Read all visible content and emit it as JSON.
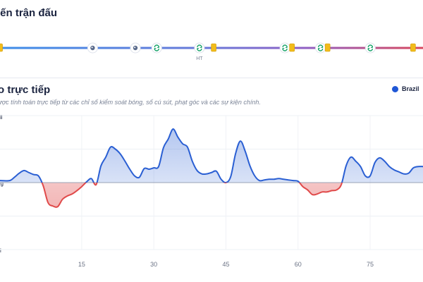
{
  "timeline": {
    "title": "iến trận đấu",
    "halftime_label": "HT",
    "events": [
      {
        "type": "card",
        "minute": 1
      },
      {
        "type": "ball",
        "minute": 14
      },
      {
        "type": "ball",
        "minute": 20
      },
      {
        "type": "substitution",
        "minute": 23
      },
      {
        "type": "substitution",
        "minute": 29
      },
      {
        "type": "card",
        "minute": 31
      },
      {
        "type": "substitution",
        "minute": 41
      },
      {
        "type": "card",
        "minute": 42
      },
      {
        "type": "substitution",
        "minute": 46
      },
      {
        "type": "card",
        "minute": 47
      },
      {
        "type": "substitution",
        "minute": 53
      },
      {
        "type": "card",
        "minute": 59
      }
    ],
    "colors": {
      "home": "#3d8de8",
      "middle": "#8f5fc4",
      "away": "#d8475c"
    }
  },
  "momentum": {
    "title": "o trực tiếp",
    "subtitle": "ược tính toán trực tiếp từ các chỉ số kiểm soát bóng, số cú sút, phạt góc và các sự kiện chính.",
    "legend": {
      "label": "Brazil",
      "color": "#1f57d6"
    },
    "y_labels": {
      "top": "zil",
      "middle": "ng",
      "bottom": "iti"
    }
  },
  "chart_data": {
    "type": "area",
    "title": "",
    "xlabel": "",
    "ylabel": "",
    "x_ticks": [
      15,
      30,
      45,
      60,
      75
    ],
    "xlim": [
      -2,
      86
    ],
    "ylim": [
      -100,
      100
    ],
    "grid": true,
    "series": [
      {
        "name": "Brazil",
        "positive_color": "#2a5fd3",
        "negative_color": "#e04a4a",
        "x": [
          -2,
          0,
          1,
          2,
          3,
          4,
          5,
          6,
          7,
          8,
          9,
          10,
          11,
          12,
          13,
          14,
          15,
          16,
          17,
          18,
          19,
          20,
          21,
          22,
          23,
          24,
          25,
          26,
          27,
          28,
          29,
          30,
          31,
          32,
          33,
          34,
          35,
          36,
          37,
          38,
          39,
          40,
          41,
          42,
          43,
          44,
          45,
          46,
          47,
          48,
          49,
          50,
          51,
          52,
          53,
          54,
          55,
          56,
          57,
          58,
          59,
          60,
          61,
          62,
          63,
          64,
          65,
          66,
          67,
          68,
          69,
          70,
          71,
          72,
          73,
          74,
          75,
          76,
          77,
          78,
          79,
          80,
          81,
          82,
          83,
          84,
          85,
          86
        ],
        "values": [
          3,
          3,
          8,
          14,
          18,
          15,
          12,
          10,
          -5,
          -30,
          -35,
          -36,
          -25,
          -20,
          -17,
          -12,
          -6,
          1,
          6,
          -3,
          25,
          38,
          53,
          50,
          43,
          32,
          20,
          10,
          8,
          21,
          20,
          22,
          24,
          52,
          65,
          80,
          68,
          58,
          53,
          32,
          18,
          13,
          13,
          15,
          17,
          5,
          0,
          9,
          43,
          62,
          47,
          25,
          10,
          3,
          4,
          5,
          5,
          6,
          5,
          4,
          3,
          2,
          -6,
          -11,
          -18,
          -17,
          -14,
          -14,
          -12,
          -11,
          -3,
          25,
          38,
          32,
          24,
          10,
          10,
          30,
          37,
          32,
          24,
          19,
          16,
          13,
          14,
          22,
          24,
          24
        ]
      }
    ]
  }
}
